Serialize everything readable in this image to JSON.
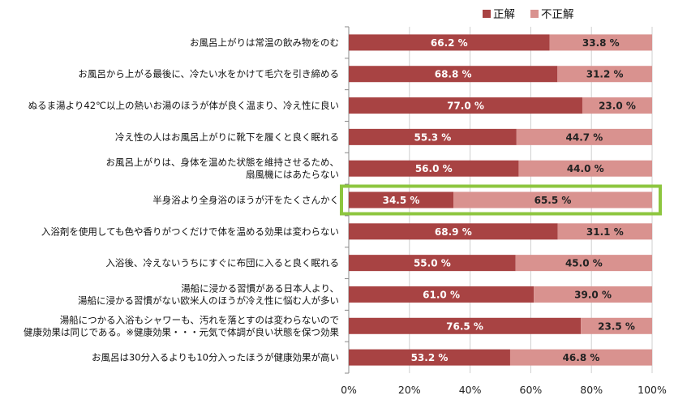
{
  "chart_data": {
    "type": "bar",
    "stacked": true,
    "orientation": "horizontal",
    "xlim": [
      0,
      100
    ],
    "x_ticks": [
      "0%",
      "20%",
      "40%",
      "60%",
      "80%",
      "100%"
    ],
    "value_suffix": " %",
    "grid": true,
    "legend_position": "top-right",
    "categories": [
      [
        "お風呂上がりは常温の飲み物をのむ"
      ],
      [
        "お風呂から上がる最後に、冷たい水をかけて毛穴を引き締める"
      ],
      [
        "ぬるま湯より42℃以上の熱いお湯のほうが体が良く温まり、冷え性に良い"
      ],
      [
        "冷え性の人はお風呂上がりに靴下を履くと良く眠れる"
      ],
      [
        "お風呂上がりは、身体を温めた状態を維持させるため、",
        "扇風機にはあたらない"
      ],
      [
        "半身浴より全身浴のほうが汗をたくさんかく"
      ],
      [
        "入浴剤を使用しても色や香りがつくだけで体を温める効果は変わらない"
      ],
      [
        "入浴後、冷えないうちにすぐに布団に入ると良く眠れる"
      ],
      [
        "湯船に浸かる習慣がある日本人より、",
        "湯船に浸かる習慣がない欧米人のほうが冷え性に悩む人が多い"
      ],
      [
        "湯船につかる入浴もシャワーも、汚れを落とすのは変わらないので",
        "健康効果は同じである。※健康効果・・・元気で体調が良い状態を保つ効果"
      ],
      [
        "お風呂は30分入るよりも10分入ったほうが健康効果が高い"
      ]
    ],
    "series": [
      {
        "name": "正解",
        "color": "#a84343",
        "label_color": "#ffffff",
        "values": [
          66.2,
          68.8,
          77.0,
          55.3,
          56.0,
          34.5,
          68.9,
          55.0,
          61.0,
          76.5,
          53.2
        ]
      },
      {
        "name": "不正解",
        "color": "#d9928f",
        "label_color": "#222222",
        "values": [
          33.8,
          31.2,
          23.0,
          44.7,
          44.0,
          65.5,
          31.1,
          45.0,
          39.0,
          23.5,
          46.8
        ]
      }
    ],
    "highlight_index": 5,
    "highlight_color": "#8dc63f"
  }
}
